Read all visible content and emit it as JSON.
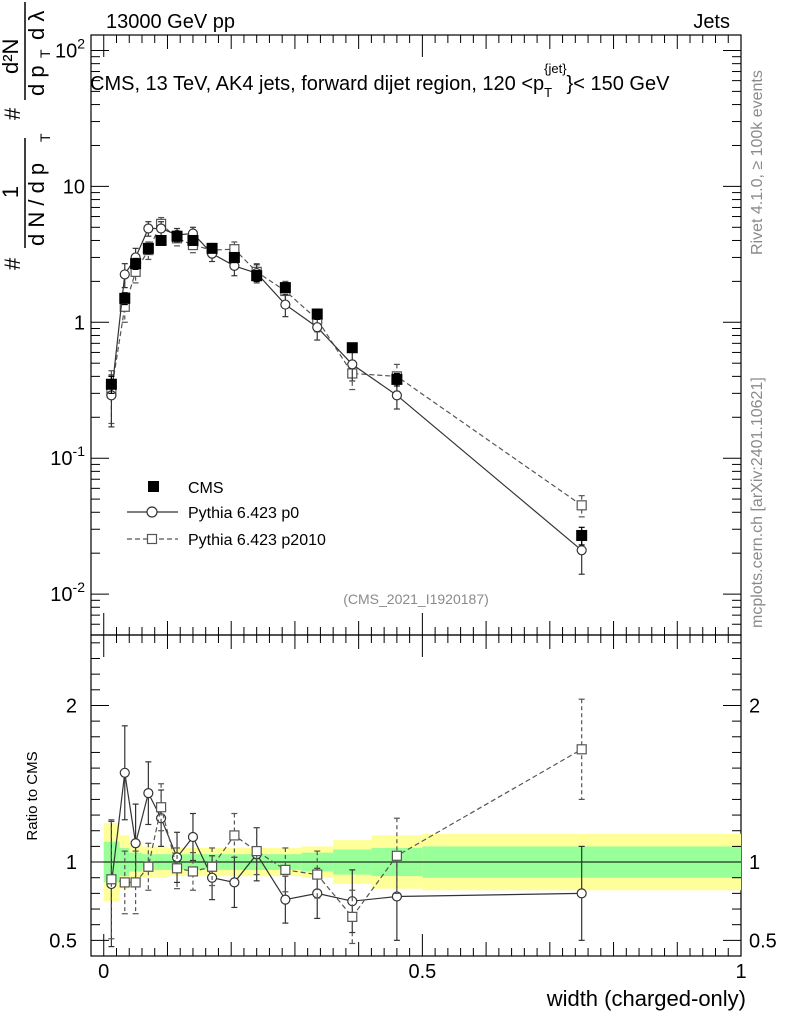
{
  "header": {
    "left": "13000 GeV pp",
    "right": "Jets"
  },
  "side_labels": {
    "rivet": "Rivet 4.1.0, ≥ 100k events",
    "mcplots": "mcplots.cern.ch [arXiv:2401.10621]"
  },
  "colors": {
    "data": "#000000",
    "p0": "#333333",
    "p2010": "#555555",
    "band_inner": "#99ff99",
    "band_outer": "#ffff99",
    "ref_line": "#000000"
  },
  "chart_data": [
    {
      "type": "scatter",
      "panel": "main",
      "title": "CMS, 13 TeV, AK4 jets, forward dijet region, 120 <p_T^{jet}< 150 GeV",
      "title_parts": {
        "prefix": "CMS, 13 TeV, AK4 jets, forward dijet region, 120 <p",
        "sub": "T",
        "sup": "{jet}",
        "suffix": "}< 150 GeV"
      },
      "ylabel": "1/(dN/dp_T) d²N/(dp_T dλ)",
      "ylabel_parts": {
        "hash": "#",
        "one": "1",
        "den": "d N / d p",
        "T": "T",
        "num": "d²N",
        "num2": "d p",
        "lambda": "d λ"
      },
      "yscale": "log",
      "ylim": [
        0.005,
        130
      ],
      "xlim": [
        -0.02,
        1.0
      ],
      "yticks": [
        {
          "value": 0.01,
          "label": "10",
          "exp": "-2"
        },
        {
          "value": 0.1,
          "label": "10",
          "exp": "-1"
        },
        {
          "value": 1,
          "label": "1",
          "exp": ""
        },
        {
          "value": 10,
          "label": "10",
          "exp": ""
        },
        {
          "value": 100,
          "label": "10",
          "exp": "2"
        }
      ],
      "watermark": "(CMS_2021_I1920187)",
      "legend": {
        "position": "bottom-left",
        "entries": [
          "CMS",
          "Pythia 6.423 p0",
          "Pythia 6.423 p2010"
        ]
      },
      "x": [
        0.012,
        0.033,
        0.05,
        0.07,
        0.09,
        0.115,
        0.14,
        0.17,
        0.205,
        0.24,
        0.285,
        0.335,
        0.39,
        0.46,
        0.75
      ],
      "series": [
        {
          "name": "CMS",
          "style": "filled-square",
          "values": [
            0.35,
            1.5,
            2.7,
            3.5,
            4.0,
            4.3,
            4.0,
            3.5,
            3.0,
            2.2,
            1.8,
            1.15,
            0.65,
            0.38,
            0.027
          ],
          "err": [
            0.05,
            0.15,
            0.25,
            0.3,
            0.3,
            0.3,
            0.3,
            0.25,
            0.25,
            0.2,
            0.15,
            0.1,
            0.05,
            0.04,
            0.004
          ]
        },
        {
          "name": "Pythia 6.423 p0",
          "style": "open-circle-solid",
          "values": [
            0.29,
            2.25,
            3.0,
            4.9,
            4.9,
            4.4,
            4.5,
            3.2,
            2.6,
            2.3,
            1.35,
            0.92,
            0.49,
            0.29,
            0.021
          ],
          "err": [
            0.12,
            0.45,
            0.5,
            0.6,
            0.6,
            0.5,
            0.5,
            0.4,
            0.4,
            0.35,
            0.25,
            0.18,
            0.12,
            0.06,
            0.007
          ]
        },
        {
          "name": "Pythia 6.423 p2010",
          "style": "open-square-dashed",
          "values": [
            0.31,
            1.3,
            2.35,
            3.4,
            5.3,
            4.15,
            3.7,
            3.4,
            3.45,
            2.35,
            1.7,
            1.05,
            0.42,
            0.4,
            0.045
          ],
          "err": [
            0.13,
            0.3,
            0.4,
            0.5,
            0.6,
            0.5,
            0.45,
            0.4,
            0.45,
            0.35,
            0.3,
            0.2,
            0.1,
            0.09,
            0.008
          ]
        }
      ]
    },
    {
      "type": "scatter",
      "panel": "ratio",
      "ylabel": "Ratio to CMS",
      "xlabel": "width (charged-only)",
      "ylim": [
        0.4,
        2.45
      ],
      "xlim": [
        -0.02,
        1.0
      ],
      "yticks": [
        0.5,
        1,
        2
      ],
      "ytick_labels": [
        "0.5",
        "1",
        "2"
      ],
      "xticks": [
        0,
        0.5,
        1
      ],
      "xtick_labels": [
        "0",
        "0.5",
        "1"
      ],
      "bins": [
        0,
        0.025,
        0.04,
        0.06,
        0.08,
        0.1,
        0.13,
        0.155,
        0.185,
        0.22,
        0.26,
        0.31,
        0.36,
        0.42,
        0.5,
        1.0
      ],
      "band_inner": [
        0.13,
        0.09,
        0.06,
        0.05,
        0.05,
        0.05,
        0.05,
        0.05,
        0.05,
        0.05,
        0.05,
        0.06,
        0.08,
        0.09,
        0.1
      ],
      "band_outer": [
        0.25,
        0.17,
        0.12,
        0.1,
        0.1,
        0.09,
        0.09,
        0.09,
        0.09,
        0.09,
        0.09,
        0.1,
        0.14,
        0.17,
        0.18
      ],
      "series": [
        {
          "name": "Pythia 6.423 p0",
          "values": [
            0.86,
            1.57,
            1.12,
            1.44,
            1.28,
            1.03,
            1.16,
            0.9,
            0.87,
            1.05,
            0.76,
            0.8,
            0.75,
            0.78,
            0.8
          ],
          "err": [
            0.4,
            0.3,
            0.25,
            0.2,
            0.18,
            0.16,
            0.15,
            0.14,
            0.16,
            0.17,
            0.15,
            0.16,
            0.2,
            0.28,
            0.3
          ]
        },
        {
          "name": "Pythia 6.423 p2010",
          "values": [
            0.89,
            0.87,
            0.87,
            0.97,
            1.35,
            0.96,
            0.94,
            0.97,
            1.17,
            1.07,
            0.95,
            0.92,
            0.65,
            1.04,
            1.72
          ],
          "err": [
            0.38,
            0.2,
            0.2,
            0.15,
            0.15,
            0.13,
            0.12,
            0.12,
            0.14,
            0.15,
            0.14,
            0.15,
            0.17,
            0.24,
            0.32
          ]
        }
      ]
    }
  ]
}
